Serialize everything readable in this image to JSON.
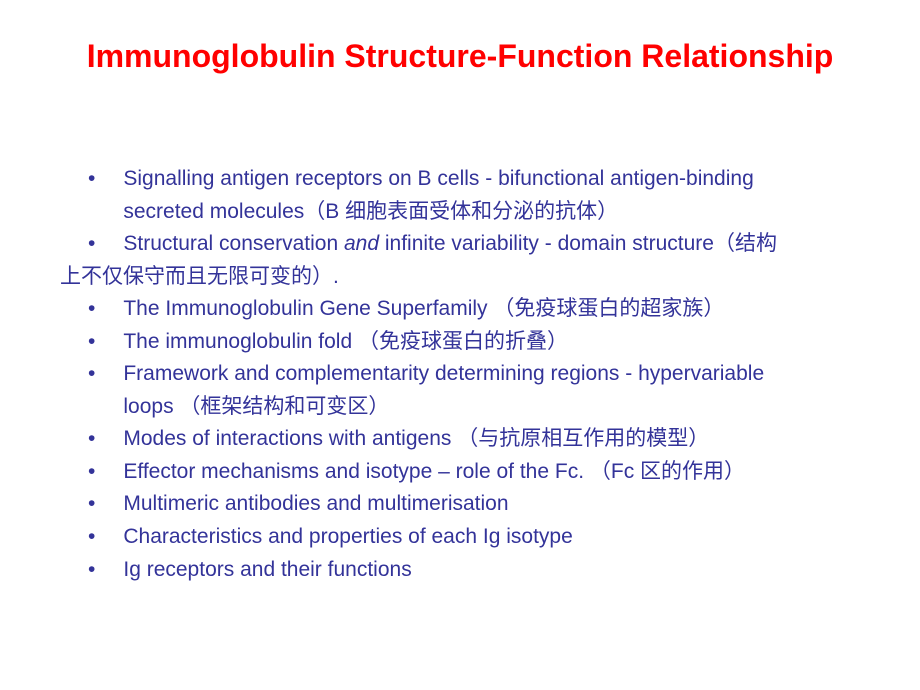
{
  "title": "Immunoglobulin Structure-Function Relationship",
  "text_color": "#333399",
  "title_color": "#ff0000",
  "background_color": "#ffffff",
  "bullets": [
    {
      "line1": "Signalling antigen receptors on B cells - bifunctional antigen-binding",
      "line2": " secreted molecules（B 细胞表面受体和分泌的抗体）"
    },
    {
      "pre": "Structural conservation ",
      "ital": "and",
      "post": " infinite variability - domain structure（结构",
      "cont": "上不仅保守而且无限可变的）."
    },
    {
      "line1": "The Immunoglobulin Gene Superfamily （免疫球蛋白的超家族）"
    },
    {
      "line1": "The immunoglobulin fold （免疫球蛋白的折叠）"
    },
    {
      "line1": "Framework and complementarity determining regions - hypervariable",
      "line2": " loops （框架结构和可变区）"
    },
    {
      "line1": "Modes of interactions with antigens （与抗原相互作用的模型）"
    },
    {
      "line1": "Effector mechanisms and isotype – role of the Fc. （Fc 区的作用）"
    },
    {
      "line1": "Multimeric antibodies and multimerisation"
    },
    {
      "line1": "Characteristics and properties of each Ig isotype"
    },
    {
      "line1": "Ig receptors and their functions"
    }
  ]
}
